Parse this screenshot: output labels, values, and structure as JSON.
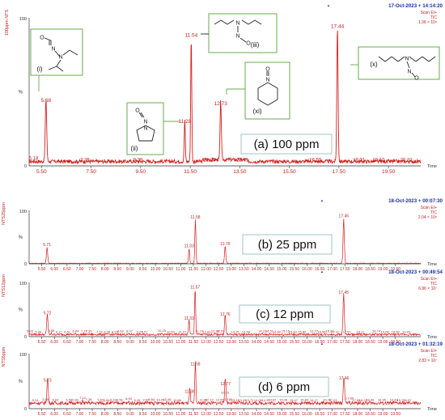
{
  "chart_data": [
    {
      "type": "line",
      "panel_label": "(a) 100 ppm",
      "header_date": "17-Oct-2023 + 14:14:20",
      "scan_mode": "Scan EI+",
      "trace": "TIC",
      "intensity": "1.36 × 10⁸",
      "y_axis_title": "100ppm NTS",
      "y_ticks": [
        "100",
        "%",
        "0"
      ],
      "x_label": "Time",
      "xlim": [
        5.0,
        20.8
      ],
      "x_ticks": [
        5.5,
        7.5,
        9.5,
        11.5,
        13.5,
        15.5,
        17.5,
        19.5
      ],
      "x_tick_labels": [
        "5.50",
        "7.50",
        "9.50",
        "11.50",
        "13.50",
        "15.50",
        "17.50",
        "19.50"
      ],
      "baseline": 3,
      "peaks": [
        {
          "x": 5.68,
          "y": 42,
          "w": 0.04,
          "label": "5.68"
        },
        {
          "x": 11.28,
          "y": 28,
          "w": 0.03,
          "label": "11.28"
        },
        {
          "x": 11.54,
          "y": 86,
          "w": 0.03,
          "label": "11.54"
        },
        {
          "x": 12.73,
          "y": 40,
          "w": 0.035,
          "label": "12.73"
        },
        {
          "x": 17.44,
          "y": 92,
          "w": 0.035,
          "label": "17.44"
        }
      ],
      "minor_labels": [
        {
          "x": 5.18,
          "y": 3,
          "label": "5.18"
        },
        {
          "x": 7.25,
          "y": 2,
          "label": "7.25"
        },
        {
          "x": 9.39,
          "y": 2,
          "label": "9.39"
        },
        {
          "x": 12.28,
          "y": 2,
          "label": "12.28"
        },
        {
          "x": 13.61,
          "y": 2,
          "label": "13.61"
        },
        {
          "x": 16.55,
          "y": 2,
          "label": "16.55"
        },
        {
          "x": 18.31,
          "y": 2,
          "label": "18.31"
        },
        {
          "x": 19.1,
          "y": 2,
          "label": "19.10"
        },
        {
          "x": 20.22,
          "y": 2,
          "label": "20.22"
        }
      ],
      "structures": [
        {
          "id": "i",
          "label": "(i)",
          "peak": 5.68
        },
        {
          "id": "ii",
          "label": "(ii)",
          "peak": 11.28
        },
        {
          "id": "iii",
          "label": "(iii)",
          "peak": 11.54
        },
        {
          "id": "xi",
          "label": "(xi)",
          "peak": 12.73
        },
        {
          "id": "x",
          "label": "(x)",
          "peak": 17.44
        }
      ]
    },
    {
      "type": "line",
      "panel_label": "(b) 25 ppm",
      "header_date": "18-Oct-2023 + 00:07:30",
      "scan_mode": "Scan EI+",
      "trace": "TIC",
      "intensity": "2.04 × 10⁸",
      "y_axis_title": "NTS25ppm",
      "y_ticks": [
        "100",
        "%",
        "0"
      ],
      "x_label": "Time",
      "xlim": [
        5.0,
        20.5
      ],
      "x_ticks": [
        5.5,
        6.0,
        6.5,
        7.0,
        7.5,
        8.0,
        8.5,
        9.0,
        9.5,
        10.0,
        10.5,
        11.0,
        11.5,
        12.0,
        12.5,
        13.0,
        13.5,
        14.0,
        14.5,
        15.0,
        15.5,
        16.0,
        16.5,
        17.0,
        17.5,
        18.0,
        18.5,
        19.0,
        19.5
      ],
      "x_tick_labels": [
        "5.50",
        "6.00",
        "6.50",
        "7.00",
        "7.50",
        "8.00",
        "8.50",
        "9.00",
        "9.50",
        "10.00",
        "10.50",
        "11.00",
        "11.50",
        "12.00",
        "12.50",
        "13.00",
        "13.50",
        "14.00",
        "14.50",
        "15.00",
        "15.50",
        "16.00",
        "16.50",
        "17.00",
        "17.50",
        "18.00",
        "18.50",
        "19.00",
        "19.50"
      ],
      "baseline": 1,
      "peaks": [
        {
          "x": 5.71,
          "y": 30,
          "w": 0.035,
          "label": "5.71"
        },
        {
          "x": 11.33,
          "y": 28,
          "w": 0.03,
          "label": "11.33"
        },
        {
          "x": 11.58,
          "y": 82,
          "w": 0.03,
          "label": "11.58"
        },
        {
          "x": 12.76,
          "y": 32,
          "w": 0.035,
          "label": "12.76"
        },
        {
          "x": 17.45,
          "y": 84,
          "w": 0.035,
          "label": "17.45"
        }
      ],
      "minor_labels": []
    },
    {
      "type": "line",
      "panel_label": "(c) 12 ppm",
      "header_date": "18-Oct-2023 + 00:49:54",
      "scan_mode": "Scan EI+",
      "trace": "TIC",
      "intensity": "6.96 × 10⁷",
      "y_axis_title": "NTS12ppm",
      "y_ticks": [
        "100",
        "%",
        "0"
      ],
      "x_label": "Time",
      "xlim": [
        5.0,
        20.5
      ],
      "x_ticks": [
        5.5,
        6.0,
        6.5,
        7.0,
        7.5,
        8.0,
        8.5,
        9.0,
        9.5,
        10.0,
        10.5,
        11.0,
        11.5,
        12.0,
        12.5,
        13.0,
        13.5,
        14.0,
        14.5,
        15.0,
        15.5,
        16.0,
        16.5,
        17.0,
        17.5,
        18.0,
        18.5,
        19.0,
        19.5
      ],
      "x_tick_labels": [
        "5.50",
        "6.00",
        "6.50",
        "7.00",
        "7.50",
        "8.00",
        "8.50",
        "9.00",
        "9.50",
        "10.00",
        "10.50",
        "11.00",
        "11.50",
        "12.00",
        "12.50",
        "13.00",
        "13.50",
        "14.00",
        "14.50",
        "15.00",
        "15.50",
        "16.00",
        "16.50",
        "17.00",
        "17.50",
        "18.00",
        "18.50",
        "19.00",
        "19.50"
      ],
      "baseline": 4,
      "peaks": [
        {
          "x": 5.72,
          "y": 38,
          "w": 0.035,
          "label": "5.72"
        },
        {
          "x": 11.33,
          "y": 28,
          "w": 0.03,
          "label": "11.33"
        },
        {
          "x": 11.57,
          "y": 86,
          "w": 0.03,
          "label": "11.57"
        },
        {
          "x": 12.76,
          "y": 36,
          "w": 0.035,
          "label": "12.76"
        },
        {
          "x": 17.45,
          "y": 76,
          "w": 0.035,
          "label": "17.45"
        }
      ],
      "minor_labels": [
        {
          "x": 5.03,
          "y": 5,
          "label": "5.03"
        },
        {
          "x": 5.36,
          "y": 4,
          "label": "5.36"
        },
        {
          "x": 5.88,
          "y": 6,
          "label": "5.88"
        },
        {
          "x": 6.17,
          "y": 4,
          "label": "6.17"
        },
        {
          "x": 6.51,
          "y": 4,
          "label": "6.51"
        },
        {
          "x": 6.84,
          "y": 5,
          "label": "6.84"
        },
        {
          "x": 7.17,
          "y": 5,
          "label": "7.17"
        },
        {
          "x": 7.36,
          "y": 5,
          "label": "7.36"
        },
        {
          "x": 7.78,
          "y": 4,
          "label": "7.78"
        },
        {
          "x": 8.08,
          "y": 4,
          "label": "8.08"
        },
        {
          "x": 8.39,
          "y": 4,
          "label": "8.39"
        },
        {
          "x": 8.62,
          "y": 5,
          "label": "8.62"
        },
        {
          "x": 8.97,
          "y": 5,
          "label": "8.97"
        },
        {
          "x": 9.37,
          "y": 4,
          "label": "9.37"
        },
        {
          "x": 9.57,
          "y": 4,
          "label": "9.57"
        },
        {
          "x": 10.25,
          "y": 6,
          "label": "10.25"
        },
        {
          "x": 10.6,
          "y": 4,
          "label": "10.60"
        },
        {
          "x": 11.07,
          "y": 4,
          "label": "11.07"
        },
        {
          "x": 11.73,
          "y": 5,
          "label": "11.73"
        },
        {
          "x": 12.03,
          "y": 4,
          "label": "12.03"
        },
        {
          "x": 12.36,
          "y": 5,
          "label": "12.36"
        },
        {
          "x": 12.57,
          "y": 5,
          "label": "12.57"
        },
        {
          "x": 13.15,
          "y": 4,
          "label": "13.15"
        },
        {
          "x": 13.58,
          "y": 4,
          "label": "13.58"
        },
        {
          "x": 14.23,
          "y": 5,
          "label": "14.23"
        },
        {
          "x": 14.51,
          "y": 5,
          "label": "14.51"
        },
        {
          "x": 14.8,
          "y": 4,
          "label": "14.80"
        },
        {
          "x": 15.15,
          "y": 5,
          "label": "15.15"
        },
        {
          "x": 15.43,
          "y": 4,
          "label": "15.43"
        },
        {
          "x": 15.8,
          "y": 4,
          "label": "15.80"
        },
        {
          "x": 16.27,
          "y": 5,
          "label": "16.27"
        },
        {
          "x": 16.58,
          "y": 4,
          "label": "16.58"
        },
        {
          "x": 16.9,
          "y": 5,
          "label": "16.90"
        },
        {
          "x": 17.11,
          "y": 4,
          "label": "17.11"
        },
        {
          "x": 17.57,
          "y": 4,
          "label": "17.57"
        },
        {
          "x": 18.11,
          "y": 4,
          "label": "18.11"
        },
        {
          "x": 18.74,
          "y": 5,
          "label": "18.74"
        },
        {
          "x": 19.08,
          "y": 4,
          "label": "19.08"
        },
        {
          "x": 19.5,
          "y": 4,
          "label": "19.50"
        },
        {
          "x": 19.93,
          "y": 4,
          "label": "19.93"
        }
      ]
    },
    {
      "type": "line",
      "panel_label": "(d) 6 ppm",
      "header_date": "18-Oct-2023 + 01:32:19",
      "scan_mode": "Scan EI+",
      "trace": "TIC",
      "intensity": "2.83 × 10⁷",
      "y_axis_title": "NTS6ppm",
      "y_ticks": [
        "100",
        "%",
        "0"
      ],
      "x_label": "Time",
      "xlim": [
        5.0,
        20.5
      ],
      "x_ticks": [
        5.5,
        6.0,
        6.5,
        7.0,
        7.5,
        8.0,
        8.5,
        9.0,
        9.5,
        10.0,
        10.5,
        11.0,
        11.5,
        12.0,
        12.5,
        13.0,
        13.5,
        14.0,
        14.5,
        15.0,
        15.5,
        16.0,
        16.5,
        17.0,
        17.5,
        18.0,
        18.5,
        19.0,
        19.5
      ],
      "x_tick_labels": [
        "5.50",
        "6.00",
        "6.50",
        "7.00",
        "7.50",
        "8.00",
        "8.50",
        "9.00",
        "9.50",
        "10.00",
        "10.50",
        "11.00",
        "11.50",
        "12.00",
        "12.50",
        "13.00",
        "13.50",
        "14.00",
        "14.50",
        "15.00",
        "15.50",
        "16.00",
        "16.50",
        "17.00",
        "17.50",
        "18.00",
        "18.50",
        "19.00",
        "19.50"
      ],
      "baseline": 10,
      "peaks": [
        {
          "x": 5.73,
          "y": 46,
          "w": 0.035,
          "label": "5.73"
        },
        {
          "x": 11.36,
          "y": 26,
          "w": 0.03,
          "label": "11.36"
        },
        {
          "x": 11.58,
          "y": 76,
          "w": 0.03,
          "label": "11.58"
        },
        {
          "x": 12.77,
          "y": 40,
          "w": 0.035,
          "label": "12.77"
        },
        {
          "x": 17.46,
          "y": 50,
          "w": 0.035,
          "label": "17.46"
        }
      ],
      "minor_labels": [
        {
          "x": 5.24,
          "y": 10,
          "label": "5.24"
        },
        {
          "x": 5.65,
          "y": 12,
          "label": "5.65"
        },
        {
          "x": 6.04,
          "y": 11,
          "label": "6.04"
        },
        {
          "x": 6.58,
          "y": 11,
          "label": "6.58"
        },
        {
          "x": 6.83,
          "y": 11,
          "label": "6.83"
        },
        {
          "x": 7.12,
          "y": 15,
          "label": "7.12"
        },
        {
          "x": 7.36,
          "y": 12,
          "label": "7.36"
        },
        {
          "x": 7.82,
          "y": 11,
          "label": "7.82"
        },
        {
          "x": 8.06,
          "y": 10,
          "label": "8.06"
        },
        {
          "x": 8.33,
          "y": 11,
          "label": "8.33"
        },
        {
          "x": 8.58,
          "y": 11,
          "label": "8.58"
        },
        {
          "x": 8.94,
          "y": 13,
          "label": "8.94"
        },
        {
          "x": 9.28,
          "y": 10,
          "label": "9.28"
        },
        {
          "x": 9.62,
          "y": 11,
          "label": "9.62"
        },
        {
          "x": 9.84,
          "y": 12,
          "label": "9.84"
        },
        {
          "x": 10.2,
          "y": 11,
          "label": "10.20"
        },
        {
          "x": 10.46,
          "y": 12,
          "label": "10.46"
        },
        {
          "x": 10.86,
          "y": 10,
          "label": "10.86"
        },
        {
          "x": 11.89,
          "y": 11,
          "label": "11.89"
        },
        {
          "x": 12.13,
          "y": 11,
          "label": "12.13"
        },
        {
          "x": 12.55,
          "y": 11,
          "label": "12.55"
        },
        {
          "x": 12.75,
          "y": 24,
          "label": "12.75"
        },
        {
          "x": 12.89,
          "y": 12,
          "label": "12.89"
        },
        {
          "x": 13.16,
          "y": 10,
          "label": "13.16"
        },
        {
          "x": 13.43,
          "y": 10,
          "label": "13.43"
        },
        {
          "x": 13.72,
          "y": 10,
          "label": "13.72"
        },
        {
          "x": 14.06,
          "y": 10,
          "label": "14.06"
        },
        {
          "x": 14.37,
          "y": 10,
          "label": "14.37"
        },
        {
          "x": 14.62,
          "y": 11,
          "label": "14.62"
        },
        {
          "x": 15.06,
          "y": 11,
          "label": "15.06"
        },
        {
          "x": 15.47,
          "y": 10,
          "label": "15.47"
        },
        {
          "x": 15.89,
          "y": 11,
          "label": "15.89"
        },
        {
          "x": 16.27,
          "y": 10,
          "label": "16.27"
        },
        {
          "x": 16.79,
          "y": 11,
          "label": "16.79"
        },
        {
          "x": 17.03,
          "y": 10,
          "label": "17.03"
        },
        {
          "x": 17.69,
          "y": 14,
          "label": "17.69"
        },
        {
          "x": 17.95,
          "y": 10,
          "label": "17.95"
        },
        {
          "x": 18.22,
          "y": 10,
          "label": "18.22"
        },
        {
          "x": 18.49,
          "y": 11,
          "label": "18.49"
        },
        {
          "x": 18.96,
          "y": 11,
          "label": "18.96"
        },
        {
          "x": 19.43,
          "y": 11,
          "label": "19.43"
        },
        {
          "x": 19.72,
          "y": 10,
          "label": "19.72"
        },
        {
          "x": 19.97,
          "y": 10,
          "label": "19.97"
        }
      ]
    }
  ],
  "colors": {
    "trace": "#d42020",
    "header_date": "#1a2f9e",
    "header_meta": "#c22222",
    "axis": "#333333",
    "axis_label": "#c22222",
    "struct_box": "#6aa84f",
    "panel_box": "#9fc6c0",
    "bond": "#222222"
  }
}
